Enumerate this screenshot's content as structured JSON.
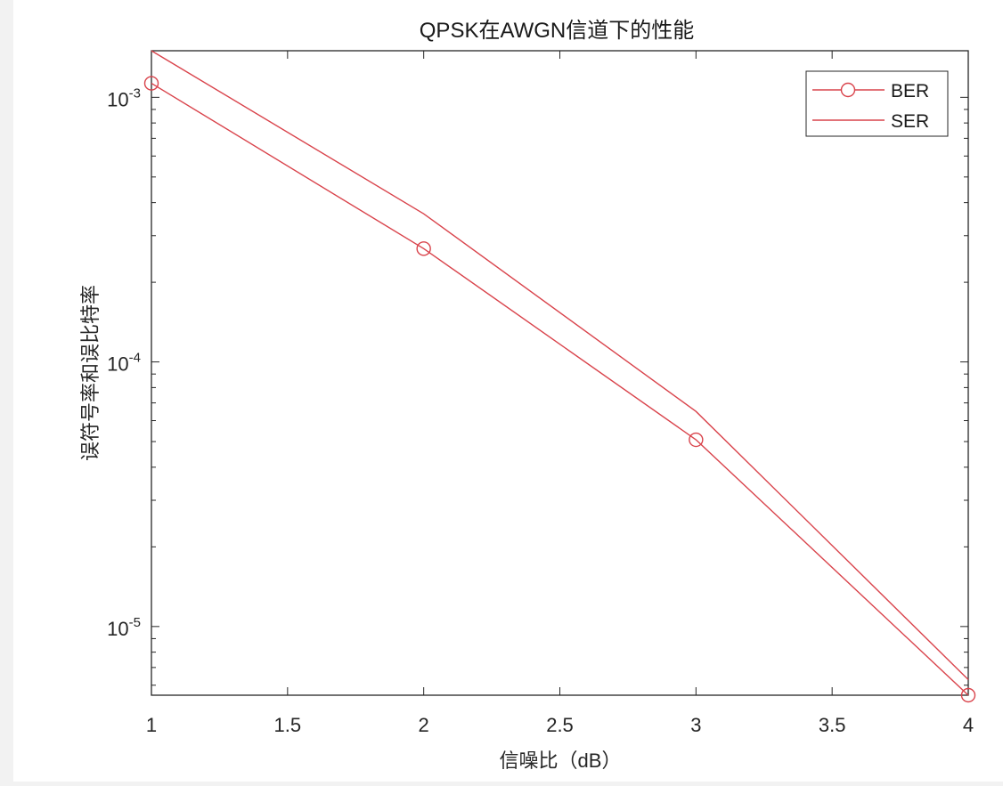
{
  "chart_data": {
    "type": "line",
    "title": "QPSK在AWGN信道下的性能",
    "xlabel": "信噪比（dB）",
    "ylabel": "误符号率和误比特率",
    "xscale": "linear",
    "yscale": "log",
    "xlim": [
      1,
      4
    ],
    "ylim": [
      5.5e-06,
      0.0015
    ],
    "x": [
      1,
      2,
      3,
      4
    ],
    "xticks": [
      1,
      1.5,
      2,
      2.5,
      3,
      3.5,
      4
    ],
    "xtick_labels": [
      "1",
      "1.5",
      "2",
      "2.5",
      "3",
      "3.5",
      "4"
    ],
    "yticks": [
      0.001,
      0.0001,
      1e-05
    ],
    "ytick_labels": [
      {
        "base": "10",
        "exp": "-3"
      },
      {
        "base": "10",
        "exp": "-4"
      },
      {
        "base": "10",
        "exp": "-5"
      }
    ],
    "grid": false,
    "legend_position": "upper right",
    "series": [
      {
        "name": "BER",
        "color": "#d62728",
        "marker": "circle",
        "values": [
          0.00113,
          0.000268,
          5.08e-05,
          5.5e-06
        ]
      },
      {
        "name": "SER",
        "color": "#d62728",
        "marker": "none",
        "values": [
          0.0015,
          0.000363,
          6.5e-05,
          6.3e-06
        ]
      }
    ]
  },
  "colors": {
    "line": "#d9434b",
    "axis": "#262626",
    "background": "#ffffff",
    "outer": "#f2f2f2"
  }
}
